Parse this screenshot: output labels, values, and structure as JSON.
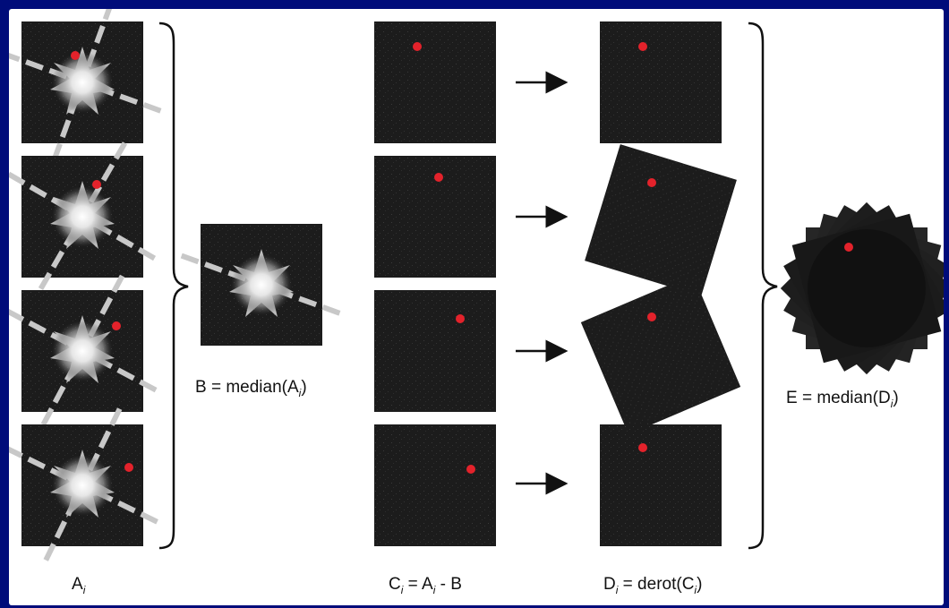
{
  "labels": {
    "a": {
      "main": "A",
      "sub": "i",
      "tail": ""
    },
    "b": {
      "pre": "B = median(A",
      "sub": "i",
      "post": ")"
    },
    "c": {
      "c": "C",
      "sub1": "i",
      "mid": " = A",
      "sub2": "i",
      "tail": " - B"
    },
    "d": {
      "d": "D",
      "sub1": "i",
      "mid": " = derot(C",
      "sub2": "i",
      "post": ")"
    },
    "e": {
      "pre": "E = median(D",
      "sub": "i",
      "post": ")"
    }
  },
  "colors": {
    "border": "#000c7a",
    "panel": "#1c1c1c",
    "planet": "#e3222b",
    "speckle": "#d8d8d8",
    "spider": "#c8c8c8"
  }
}
